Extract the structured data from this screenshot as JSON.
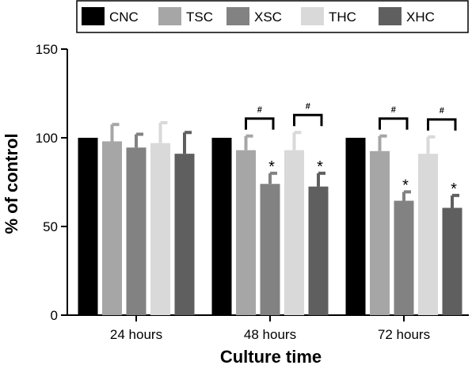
{
  "chart_data": {
    "type": "bar",
    "title": "",
    "xlabel": "Culture time",
    "ylabel": "% of control",
    "ylim": [
      0,
      150
    ],
    "yticks": [
      0,
      50,
      100,
      150
    ],
    "categories": [
      "24 hours",
      "48 hours",
      "72 hours"
    ],
    "series": [
      {
        "name": "CNC",
        "color": "#000000",
        "values": [
          100,
          100,
          100
        ],
        "errors": [
          0,
          0,
          0
        ]
      },
      {
        "name": "TSC",
        "color": "#a6a6a6",
        "values": [
          98,
          93,
          92.5
        ],
        "errors": [
          9.5,
          8,
          8.5
        ]
      },
      {
        "name": "XSC",
        "color": "#828282",
        "values": [
          94.5,
          74,
          64.5
        ],
        "errors": [
          7.5,
          6,
          5
        ]
      },
      {
        "name": "THC",
        "color": "#d9d9d9",
        "values": [
          97,
          93,
          91
        ],
        "errors": [
          11.5,
          10,
          9.5
        ]
      },
      {
        "name": "XHC",
        "color": "#5f5f5f",
        "values": [
          91,
          72.5,
          60.5
        ],
        "errors": [
          12,
          7.5,
          7
        ]
      }
    ],
    "legend": {
      "placement": "top",
      "items": [
        "CNC",
        "TSC",
        "XSC",
        "THC",
        "XHC"
      ]
    },
    "annotations": {
      "star": "*",
      "hash": "#",
      "star_series": [
        "XSC",
        "XHC"
      ],
      "star_categories": [
        "48 hours",
        "72 hours"
      ],
      "hash_brackets": [
        {
          "category": "48 hours",
          "between": [
            "TSC",
            "XSC"
          ]
        },
        {
          "category": "48 hours",
          "between": [
            "THC",
            "XHC"
          ]
        },
        {
          "category": "72 hours",
          "between": [
            "TSC",
            "XSC"
          ]
        },
        {
          "category": "72 hours",
          "between": [
            "THC",
            "XHC"
          ]
        }
      ]
    },
    "grid": false
  }
}
